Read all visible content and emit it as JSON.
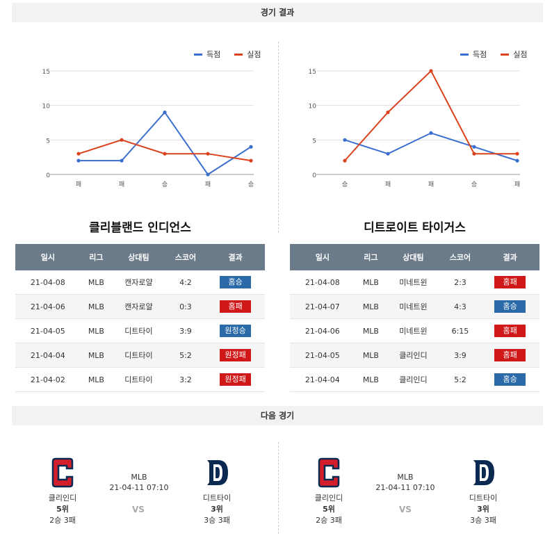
{
  "sections": {
    "results_title": "경기 결과",
    "next_title": "다음 경기"
  },
  "legend": {
    "scored": "득점",
    "allowed": "실점"
  },
  "colors": {
    "scored": "#3b6fcf",
    "allowed": "#d9421c",
    "win": "#2a6aa8",
    "loss": "#d01818",
    "header": "#6b7b8a"
  },
  "chart_data": [
    {
      "type": "line",
      "categories": [
        "패",
        "패",
        "승",
        "패",
        "승"
      ],
      "series": [
        {
          "name": "득점",
          "values": [
            2,
            2,
            9,
            0,
            4
          ]
        },
        {
          "name": "실점",
          "values": [
            3,
            5,
            3,
            3,
            2
          ]
        }
      ],
      "yticks": [
        0,
        5,
        10,
        15
      ],
      "ylim": [
        0,
        15
      ],
      "grid": true,
      "legend": "top-right"
    },
    {
      "type": "line",
      "categories": [
        "승",
        "패",
        "패",
        "승",
        "패"
      ],
      "series": [
        {
          "name": "득점",
          "values": [
            5,
            3,
            6,
            4,
            2
          ]
        },
        {
          "name": "실점",
          "values": [
            2,
            9,
            15,
            3,
            3
          ]
        }
      ],
      "yticks": [
        0,
        5,
        10,
        15
      ],
      "ylim": [
        0,
        15
      ],
      "grid": true,
      "legend": "top-right"
    }
  ],
  "teams": [
    {
      "name": "클리블랜드 인디언스",
      "headers": [
        "일시",
        "리그",
        "상대팀",
        "스코어",
        "결과"
      ],
      "rows": [
        {
          "date": "21-04-08",
          "league": "MLB",
          "opponent": "캔자로얄",
          "score": "4:2",
          "result": "홈승",
          "win": true
        },
        {
          "date": "21-04-06",
          "league": "MLB",
          "opponent": "캔자로얄",
          "score": "0:3",
          "result": "홈패",
          "win": false
        },
        {
          "date": "21-04-05",
          "league": "MLB",
          "opponent": "디트타이",
          "score": "3:9",
          "result": "원정승",
          "win": true
        },
        {
          "date": "21-04-04",
          "league": "MLB",
          "opponent": "디트타이",
          "score": "5:2",
          "result": "원정패",
          "win": false
        },
        {
          "date": "21-04-02",
          "league": "MLB",
          "opponent": "디트타이",
          "score": "3:2",
          "result": "원정패",
          "win": false
        }
      ]
    },
    {
      "name": "디트로이트 타이거스",
      "headers": [
        "일시",
        "리그",
        "상대팀",
        "스코어",
        "결과"
      ],
      "rows": [
        {
          "date": "21-04-08",
          "league": "MLB",
          "opponent": "미네트윈",
          "score": "2:3",
          "result": "홈패",
          "win": false
        },
        {
          "date": "21-04-07",
          "league": "MLB",
          "opponent": "미네트윈",
          "score": "4:3",
          "result": "홈승",
          "win": true
        },
        {
          "date": "21-04-06",
          "league": "MLB",
          "opponent": "미네트윈",
          "score": "6:15",
          "result": "홈패",
          "win": false
        },
        {
          "date": "21-04-05",
          "league": "MLB",
          "opponent": "클리인디",
          "score": "3:9",
          "result": "홈패",
          "win": false
        },
        {
          "date": "21-04-04",
          "league": "MLB",
          "opponent": "클리인디",
          "score": "5:2",
          "result": "홈승",
          "win": true
        }
      ]
    }
  ],
  "next_games": [
    {
      "league": "MLB",
      "datetime": "21-04-11 07:10",
      "vs": "VS",
      "home": {
        "name": "클리인디",
        "rank": "5위",
        "record": "2승 3패",
        "logo": "C"
      },
      "away": {
        "name": "디트타이",
        "rank": "3위",
        "record": "3승 3패",
        "logo": "D"
      }
    },
    {
      "league": "MLB",
      "datetime": "21-04-11 07:10",
      "vs": "VS",
      "home": {
        "name": "클리인디",
        "rank": "5위",
        "record": "2승 3패",
        "logo": "C"
      },
      "away": {
        "name": "디트타이",
        "rank": "3위",
        "record": "3승 3패",
        "logo": "D"
      }
    }
  ]
}
